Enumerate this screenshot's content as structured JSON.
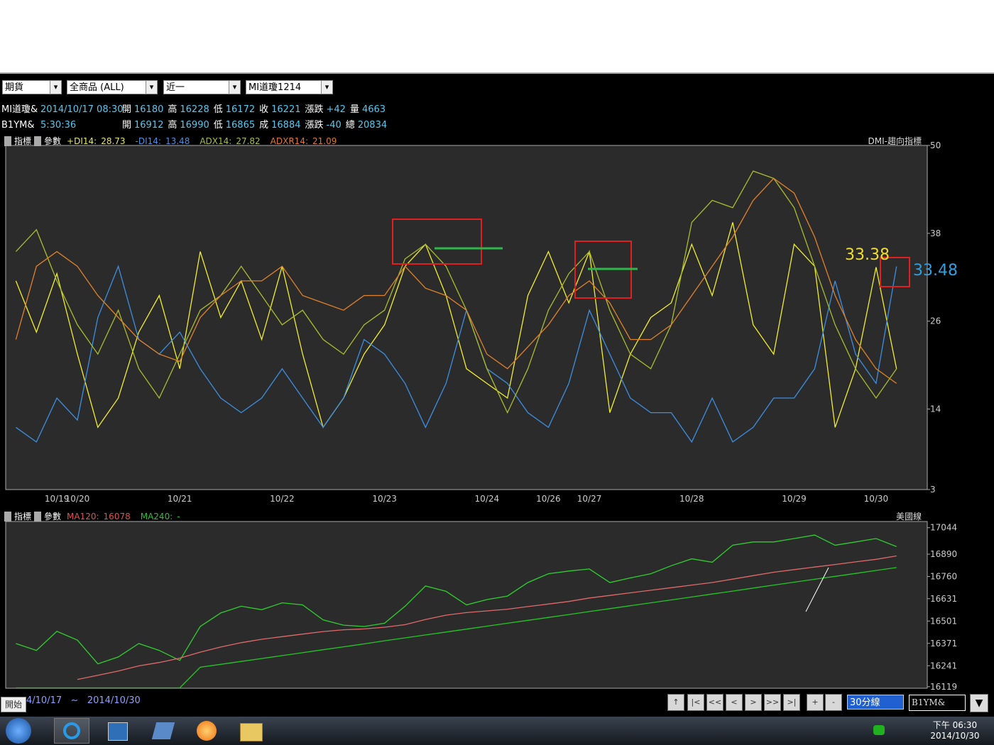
{
  "toolbar": {
    "market": "期貨",
    "product": "全商品 (ALL)",
    "contract": "近一",
    "symbol": "MI道瓊1214"
  },
  "quote": [
    {
      "name": "MI道瓊&",
      "time": "2014/10/17 08:30",
      "fields": [
        [
          "開",
          "16180"
        ],
        [
          "高",
          "16228"
        ],
        [
          "低",
          "16172"
        ],
        [
          "收",
          "16221"
        ],
        [
          "漲跌",
          "+42"
        ],
        [
          "量",
          "4663"
        ]
      ]
    },
    {
      "name": "B1YM&",
      "time": "5:30:36",
      "fields": [
        [
          "開",
          "16912"
        ],
        [
          "高",
          "16990"
        ],
        [
          "低",
          "16865"
        ],
        [
          "成",
          "16884"
        ],
        [
          "漲跌",
          "-40"
        ],
        [
          "總",
          "20834"
        ]
      ]
    }
  ],
  "panes": [
    {
      "indicator_btn": "指標",
      "param_btn": "參數",
      "readouts": [
        [
          "+DI14:",
          "28.73"
        ],
        [
          "-DI14:",
          "13.48"
        ],
        [
          "ADX14:",
          "27.82"
        ],
        [
          "ADXR14:",
          "21.09"
        ]
      ],
      "name": "DMI-趨向指標"
    },
    {
      "indicator_btn": "指標",
      "param_btn": "參數",
      "readouts": [
        [
          "MA120:",
          "16078"
        ],
        [
          "MA240:",
          "-"
        ]
      ],
      "name": "美國線"
    }
  ],
  "bottom": {
    "start_btn": "開始",
    "range": [
      "4/10/17",
      "~",
      "2014/10/30"
    ],
    "nav": [
      "↑",
      "|<",
      "<<",
      "<",
      ">",
      ">>",
      ">|",
      "+",
      "-"
    ],
    "interval": "30分線",
    "symbol_input": "B1YM&"
  },
  "taskbar": {
    "time": "下午 06:30",
    "date": "2014/10/30"
  },
  "chart_data": [
    {
      "type": "line",
      "categories": [
        null,
        null,
        "10/19",
        "10/20",
        null,
        null,
        null,
        null,
        "10/21",
        null,
        null,
        null,
        null,
        "10/22",
        null,
        null,
        null,
        null,
        "10/23",
        null,
        null,
        null,
        null,
        "10/24",
        null,
        null,
        "10/26",
        null,
        "10/27",
        null,
        null,
        null,
        null,
        "10/28",
        null,
        null,
        null,
        null,
        "10/29",
        null,
        null,
        null,
        "10/30",
        null,
        null
      ],
      "ylim": [
        3,
        50
      ],
      "yticks": [
        3,
        14,
        26,
        38,
        50
      ],
      "series": [
        {
          "color": "#f2ee30",
          "values": [
            31.5,
            24.5,
            32.5,
            21.5,
            11.5,
            15.5,
            24.5,
            29.5,
            19.5,
            35.5,
            26.5,
            31.5,
            23.5,
            33.5,
            21.5,
            11.5,
            15.5,
            21.5,
            25.5,
            33.5,
            36.5,
            29.5,
            19.5,
            17.5,
            15.5,
            29.5,
            35.5,
            28.5,
            35.5,
            13.5,
            21.5,
            26.5,
            28.5,
            36.5,
            29.5,
            39.5,
            25.5,
            21.5,
            36.5,
            33.5,
            11.5,
            19.5,
            33.38,
            19.5,
            null
          ]
        },
        {
          "color": "#3d8fe0",
          "values": [
            11.5,
            9.5,
            15.5,
            12.5,
            26.5,
            33.5,
            23.5,
            21.5,
            24.5,
            19.5,
            15.5,
            13.5,
            15.5,
            19.5,
            15.5,
            11.5,
            15.5,
            23.5,
            21.5,
            17.5,
            11.5,
            17.5,
            27.5,
            19.5,
            17.5,
            13.5,
            11.5,
            17.5,
            27.5,
            21.5,
            15.5,
            13.5,
            13.5,
            9.5,
            15.5,
            9.5,
            11.5,
            15.5,
            15.5,
            19.5,
            31.5,
            21.5,
            17.5,
            33.48,
            null
          ]
        },
        {
          "color": "#aabd2e",
          "values": [
            35.5,
            38.5,
            31.5,
            25.5,
            21.5,
            27.5,
            19.5,
            15.5,
            21.5,
            27.5,
            29.5,
            33.5,
            29.5,
            25.5,
            27.5,
            23.5,
            21.5,
            25.5,
            27.5,
            34.5,
            36.5,
            33.5,
            27.5,
            19.5,
            13.5,
            19.5,
            27.5,
            32.5,
            35.5,
            27.5,
            21.5,
            19.5,
            25.5,
            39.5,
            42.5,
            41.5,
            46.5,
            45.5,
            41.5,
            33.5,
            25.5,
            19.5,
            15.5,
            19.5,
            null
          ]
        },
        {
          "color": "#e0822a",
          "values": [
            23.5,
            33.5,
            35.5,
            33.5,
            29.5,
            26.5,
            23.5,
            21.5,
            20.5,
            26.5,
            29.5,
            31.5,
            31.5,
            33.5,
            29.5,
            28.5,
            27.5,
            29.5,
            29.5,
            33.5,
            30.5,
            29.5,
            27.5,
            21.5,
            19.5,
            22.5,
            25.5,
            29.5,
            31.5,
            28.5,
            23.5,
            23.5,
            25.5,
            29.5,
            33.5,
            37.5,
            42.5,
            45.5,
            43.5,
            37.5,
            29.5,
            23.5,
            19.5,
            17.5,
            null
          ]
        }
      ],
      "annotations": [
        {
          "text": "33.38",
          "color": "#f2de30"
        },
        {
          "text": "33.48",
          "color": "#2f9fe0"
        }
      ]
    },
    {
      "type": "line",
      "ylim": [
        16110,
        17080
      ],
      "yticks": [
        16119,
        16241,
        16371,
        16501,
        16631,
        16760,
        16890,
        17044
      ],
      "series": [
        {
          "color": "#2fcf2f",
          "values": [
            16370,
            16330,
            16441,
            16390,
            16252,
            16292,
            16370,
            16330,
            16272,
            16469,
            16548,
            16587,
            16567,
            16607,
            16595,
            16508,
            16477,
            16469,
            16488,
            16587,
            16705,
            16674,
            16595,
            16626,
            16646,
            16725,
            16776,
            16792,
            16804,
            16725,
            16752,
            16776,
            16823,
            16863,
            16843,
            16942,
            16961,
            16961,
            16981,
            17001,
            16942,
            16961,
            16981,
            16934,
            null
          ]
        },
        {
          "color": "#e06a6a",
          "values": [
            null,
            null,
            null,
            16161,
            16185,
            16210,
            16240,
            16260,
            16285,
            16320,
            16350,
            16375,
            16395,
            16410,
            16425,
            16440,
            16450,
            16455,
            16465,
            16480,
            16510,
            16535,
            16550,
            16560,
            16570,
            16585,
            16600,
            16615,
            16635,
            16650,
            16665,
            16680,
            16695,
            16710,
            16725,
            16745,
            16765,
            16785,
            16800,
            16815,
            16830,
            16845,
            16860,
            16880,
            null
          ]
        },
        {
          "color": "#22c822",
          "values": [
            16112,
            16112,
            16112,
            16112,
            16112,
            16112,
            16112,
            16112,
            16112,
            16232,
            16249,
            16266,
            16283,
            16300,
            16317,
            16334,
            16351,
            16368,
            16386,
            16403,
            16420,
            16437,
            16454,
            16471,
            16488,
            16505,
            16522,
            16539,
            16556,
            16573,
            16590,
            16607,
            16624,
            16641,
            16658,
            16675,
            16693,
            16710,
            16727,
            16744,
            16761,
            16778,
            16795,
            16812,
            null
          ]
        }
      ]
    }
  ]
}
